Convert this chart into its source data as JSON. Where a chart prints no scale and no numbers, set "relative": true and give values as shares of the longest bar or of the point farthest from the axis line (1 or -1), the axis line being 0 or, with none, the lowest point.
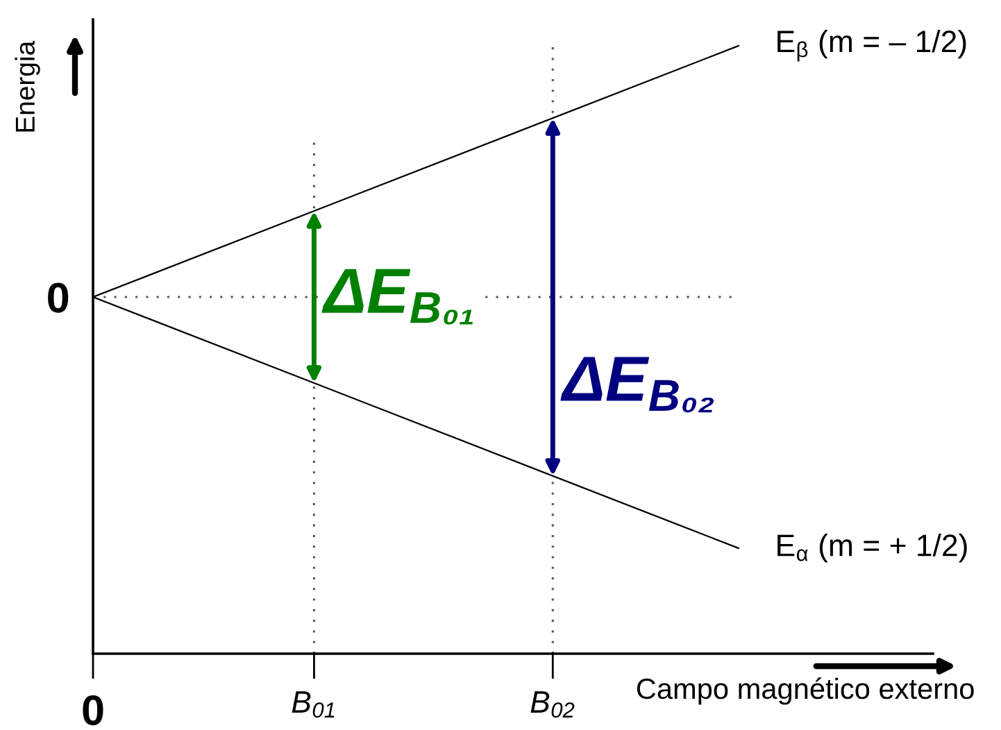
{
  "chart_data": {
    "type": "line",
    "relative": true,
    "xlabel": "Campo magnético externo",
    "ylabel": "Energia",
    "line_style": "solid",
    "x": [
      0,
      2.92
    ],
    "series": [
      {
        "name": "E$_{β}$ (m = – 1/2)",
        "color": "#000000",
        "values": [
          0,
          1
        ]
      },
      {
        "name": "E$_{α}$ (m = + 1/2)",
        "color": "#000000",
        "values": [
          0,
          -1
        ]
      }
    ],
    "xlim": [
      0,
      3.8
    ],
    "xticks": [
      0,
      {
        "value": 1,
        "label": "B$_{01}$"
      },
      {
        "value": 2.08,
        "label": "B$_{02}$"
      }
    ],
    "ref_lines": [
      {
        "axis": "y",
        "value": 0,
        "label": "0",
        "line_style": "dotted",
        "color": "#555555"
      },
      {
        "axis": "x",
        "value": 1,
        "line_style": "dotted",
        "color": "#555555"
      },
      {
        "axis": "x",
        "value": 2.08,
        "line_style": "dotted",
        "color": "#555555"
      }
    ],
    "annotations": [
      {
        "text": "ΔE$_{B₀₁}$",
        "x": 1,
        "y": 0.12
      },
      {
        "text": "ΔE$_{B₀₂}$",
        "x": 2.08,
        "y": -0.23
      }
    ]
  }
}
